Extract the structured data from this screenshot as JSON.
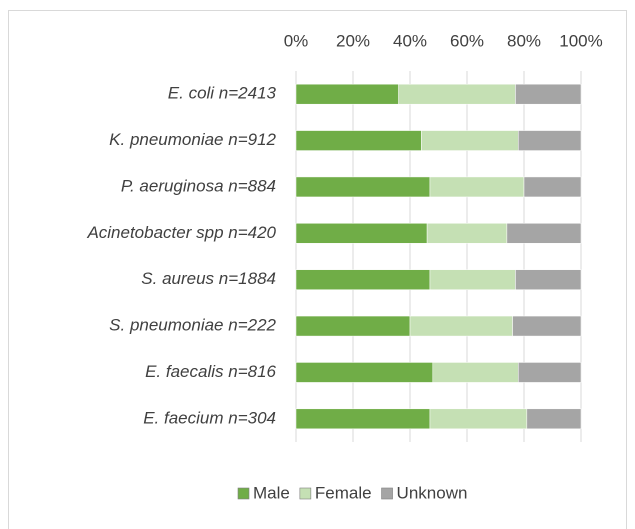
{
  "chart_data": {
    "type": "stacked_bar_horizontal",
    "categories": [
      "E. coli n=2413",
      "K. pneumoniae n=912",
      "P. aeruginosa n=884",
      "Acinetobacter spp n=420",
      "S. aureus n=1884",
      "S. pneumoniae n=222",
      "E. faecalis n=816",
      "E. faecium n=304"
    ],
    "series": [
      {
        "name": "Male",
        "color": "#70ad47",
        "values": [
          36,
          44,
          47,
          46,
          47,
          40,
          48,
          47
        ]
      },
      {
        "name": "Female",
        "color": "#c5e0b4",
        "values": [
          41,
          34,
          33,
          28,
          30,
          36,
          30,
          34
        ]
      },
      {
        "name": "Unknown",
        "color": "#a5a5a5",
        "values": [
          23,
          22,
          20,
          26,
          23,
          24,
          22,
          19
        ]
      }
    ],
    "xlim": [
      0,
      100
    ],
    "xticks": [
      {
        "value": 0,
        "label": "0%"
      },
      {
        "value": 20,
        "label": "20%"
      },
      {
        "value": 40,
        "label": "40%"
      },
      {
        "value": 60,
        "label": "60%"
      },
      {
        "value": 80,
        "label": "80%"
      },
      {
        "value": 100,
        "label": "100%"
      }
    ],
    "grid": true,
    "legend": "bottom"
  }
}
